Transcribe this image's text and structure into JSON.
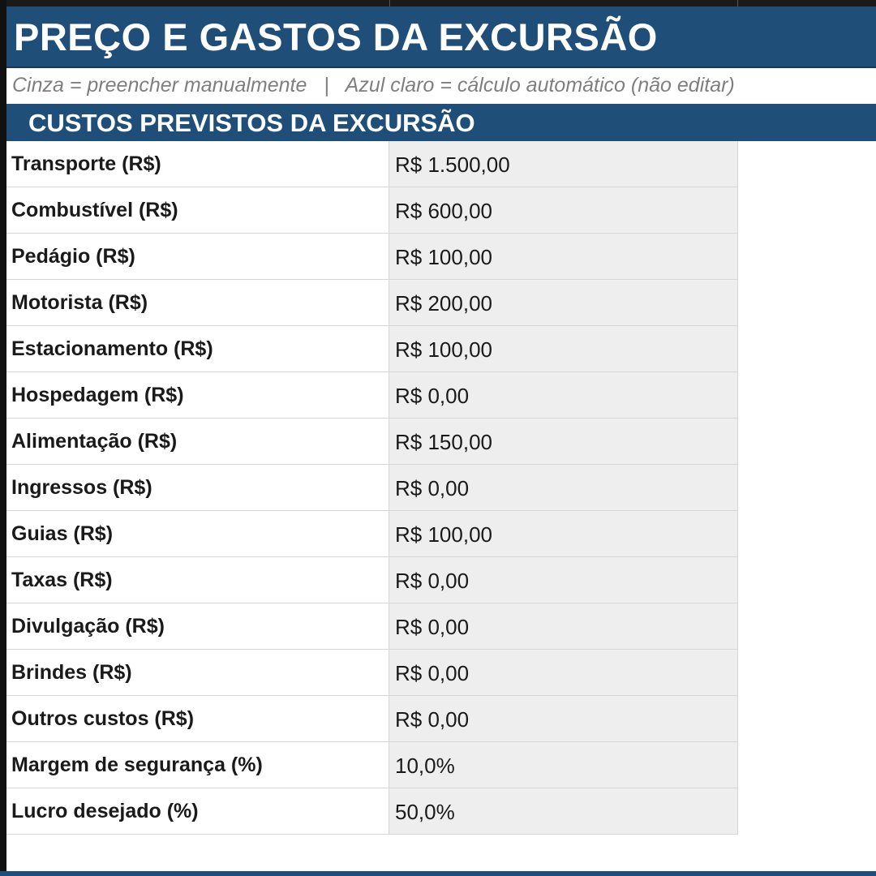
{
  "header": {
    "title": "PREÇO E GASTOS DA EXCURSÃO",
    "legend": "Cinza = preencher manualmente   |   Azul claro = cálculo automático (não editar)"
  },
  "section": {
    "title": "CUSTOS PREVISTOS DA EXCURSÃO"
  },
  "rows": [
    {
      "label": "Transporte (R$)",
      "value": "R$ 1.500,00"
    },
    {
      "label": "Combustível (R$)",
      "value": "R$ 600,00"
    },
    {
      "label": "Pedágio (R$)",
      "value": "R$ 100,00"
    },
    {
      "label": "Motorista (R$)",
      "value": "R$ 200,00"
    },
    {
      "label": "Estacionamento (R$)",
      "value": "R$ 100,00"
    },
    {
      "label": "Hospedagem (R$)",
      "value": "R$ 0,00"
    },
    {
      "label": "Alimentação (R$)",
      "value": "R$ 150,00"
    },
    {
      "label": "Ingressos (R$)",
      "value": "R$ 0,00"
    },
    {
      "label": "Guias (R$)",
      "value": "R$ 100,00"
    },
    {
      "label": "Taxas (R$)",
      "value": "R$ 0,00"
    },
    {
      "label": "Divulgação (R$)",
      "value": "R$ 0,00"
    },
    {
      "label": "Brindes (R$)",
      "value": "R$ 0,00"
    },
    {
      "label": "Outros custos (R$)",
      "value": "R$ 0,00"
    },
    {
      "label": "Margem de segurança (%)",
      "value": "10,0%"
    },
    {
      "label": "Lucro desejado (%)",
      "value": "50,0%"
    }
  ],
  "colors": {
    "header_blue": "#1f4e79",
    "input_gray": "#eeeeee",
    "legend_gray": "#7f7f7f"
  }
}
